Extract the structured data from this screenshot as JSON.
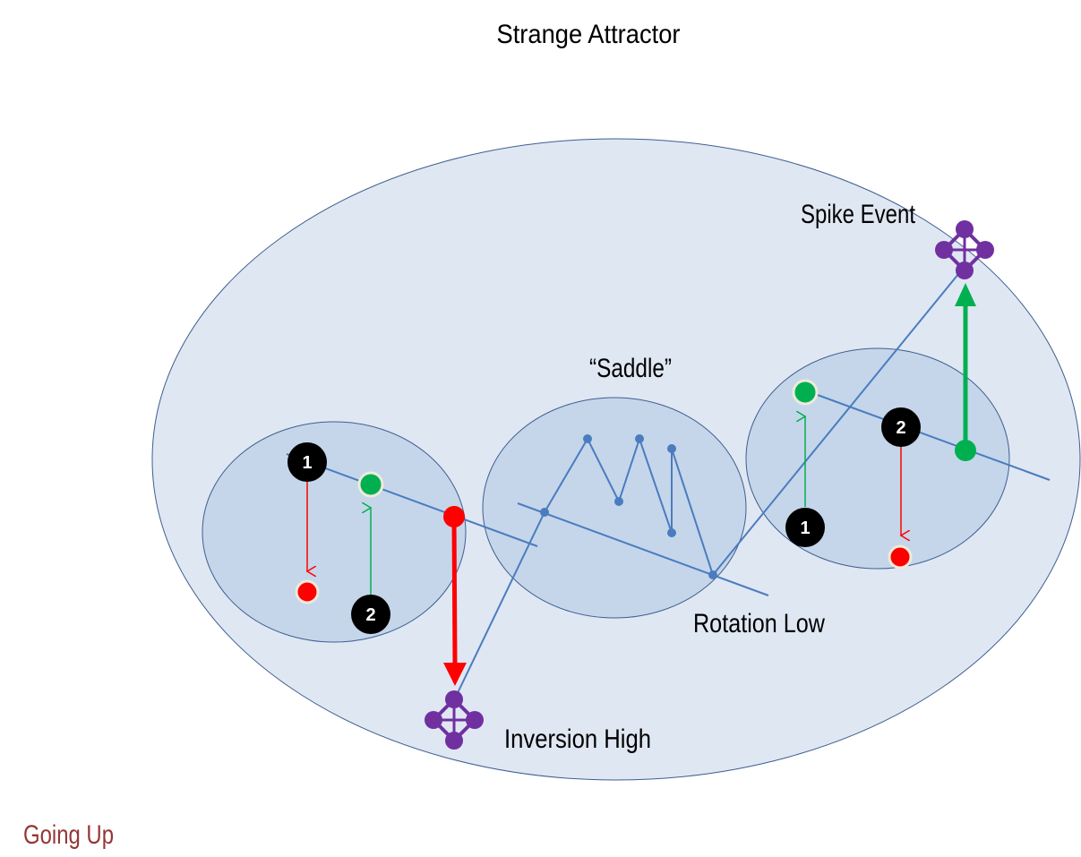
{
  "title": "Strange Attractor",
  "labels": {
    "spike": "Spike Event",
    "saddle": "“Saddle”",
    "rotation": "Rotation Low",
    "inversion": "Inversion High",
    "corner": "Going Up"
  },
  "markers": {
    "one": "1",
    "two": "2"
  },
  "colors": {
    "outer_fill": "#dfe7f3",
    "inner_fill": "#c5d6ea",
    "outline": "#3f5f8f",
    "line": "#4a7cbf",
    "green": "#00b050",
    "red": "#ff0000",
    "purple": "#7030a0",
    "corner_text": "#943634"
  },
  "icons": {
    "event": "network-node-icon"
  }
}
